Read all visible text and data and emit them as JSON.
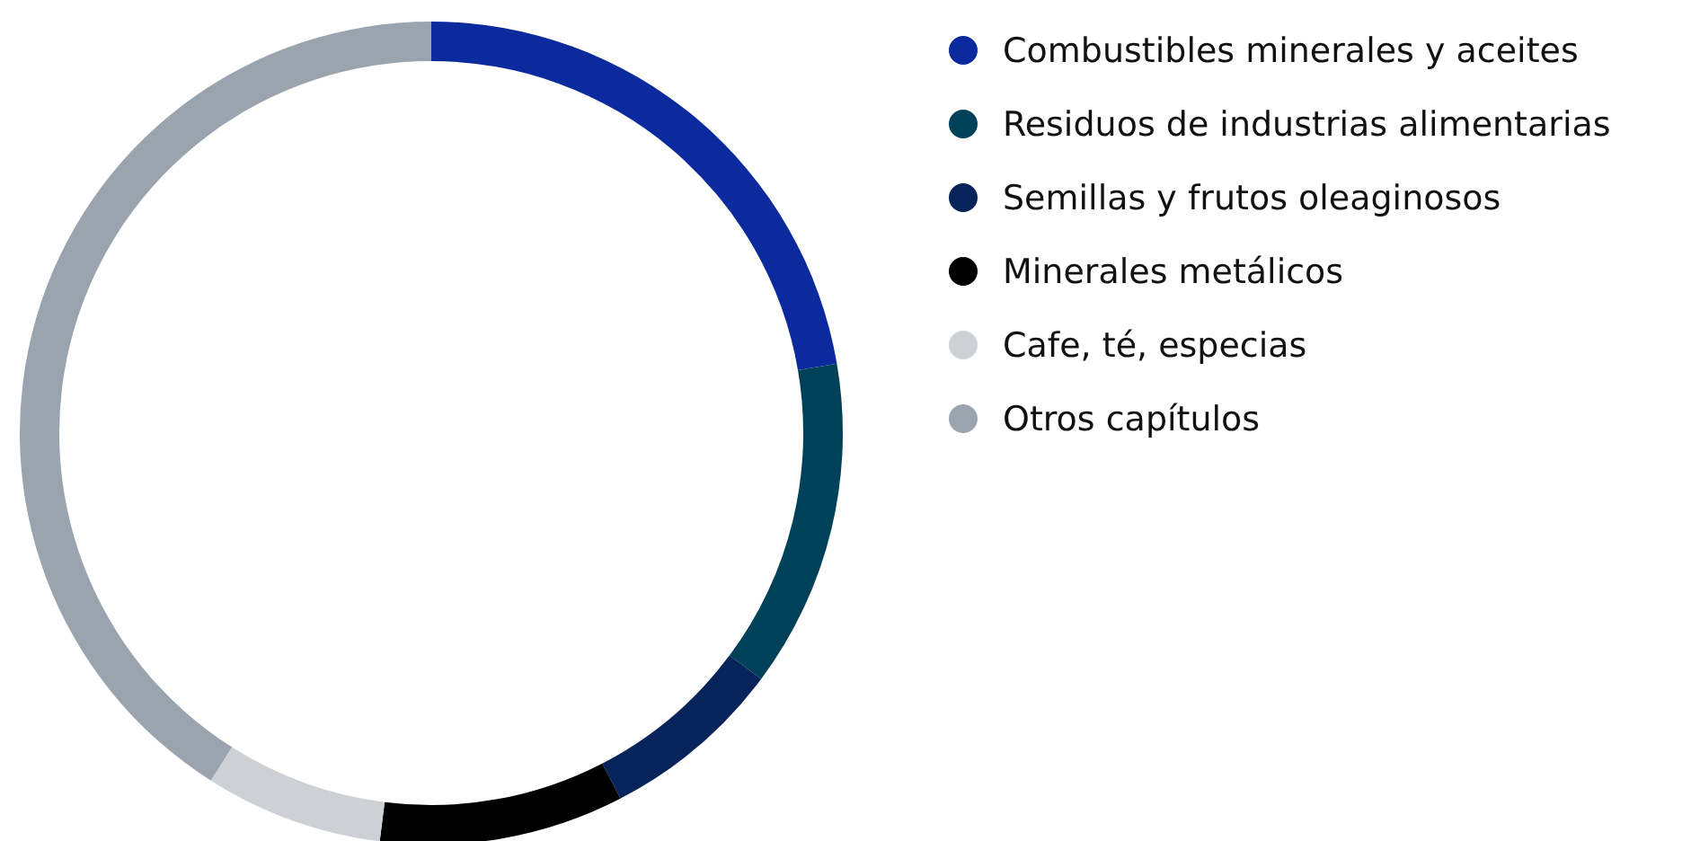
{
  "chart_data": {
    "type": "donut",
    "categories": [
      "Combustibles minerales y aceites",
      "Residuos de industrias alimentarias",
      "Semillas y frutos oleaginosos",
      "Minerales metálicos",
      "Cafe, té, especias",
      "Otros capítulos"
    ],
    "values": [
      22.3,
      12.9,
      7.2,
      9.6,
      7.0,
      41.0
    ],
    "colors": [
      "#0a2a9e",
      "#00415a",
      "#062459",
      "#000000",
      "#cdd1d6",
      "#9aa4ae"
    ],
    "legend": "top right"
  }
}
